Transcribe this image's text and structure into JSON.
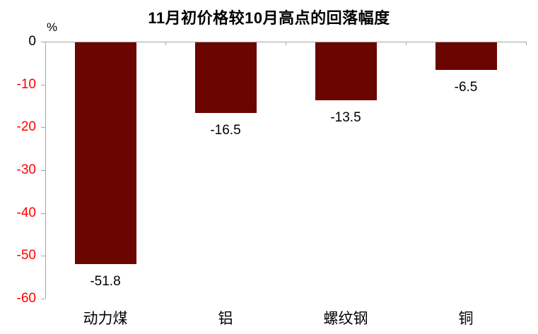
{
  "chart_data": {
    "type": "bar",
    "title": "11月初价格较10月高点的回落幅度",
    "unit_label": "%",
    "categories": [
      "动力煤",
      "铝",
      "螺纹钢",
      "铜"
    ],
    "values": [
      -51.8,
      -16.5,
      -13.5,
      -6.5
    ],
    "data_labels": [
      "-51.8",
      "-16.5",
      "-13.5",
      "-6.5"
    ],
    "ylim": [
      -60,
      0
    ],
    "yticks": [
      0,
      -10,
      -20,
      -30,
      -40,
      -50,
      -60
    ],
    "ytick_labels": [
      "0",
      "-10",
      "-20",
      "-30",
      "-40",
      "-50",
      "-60"
    ],
    "xlabel": "",
    "ylabel": "",
    "grid": false,
    "legend": "none",
    "colors": {
      "bar": "#6B0500",
      "axis": "#A6A6A6",
      "ytick_label_zero": "#000000",
      "ytick_label_negative": "#FF0000",
      "title": "#000000",
      "data_label": "#000000",
      "category_label": "#000000",
      "background": "#FFFFFF"
    }
  }
}
